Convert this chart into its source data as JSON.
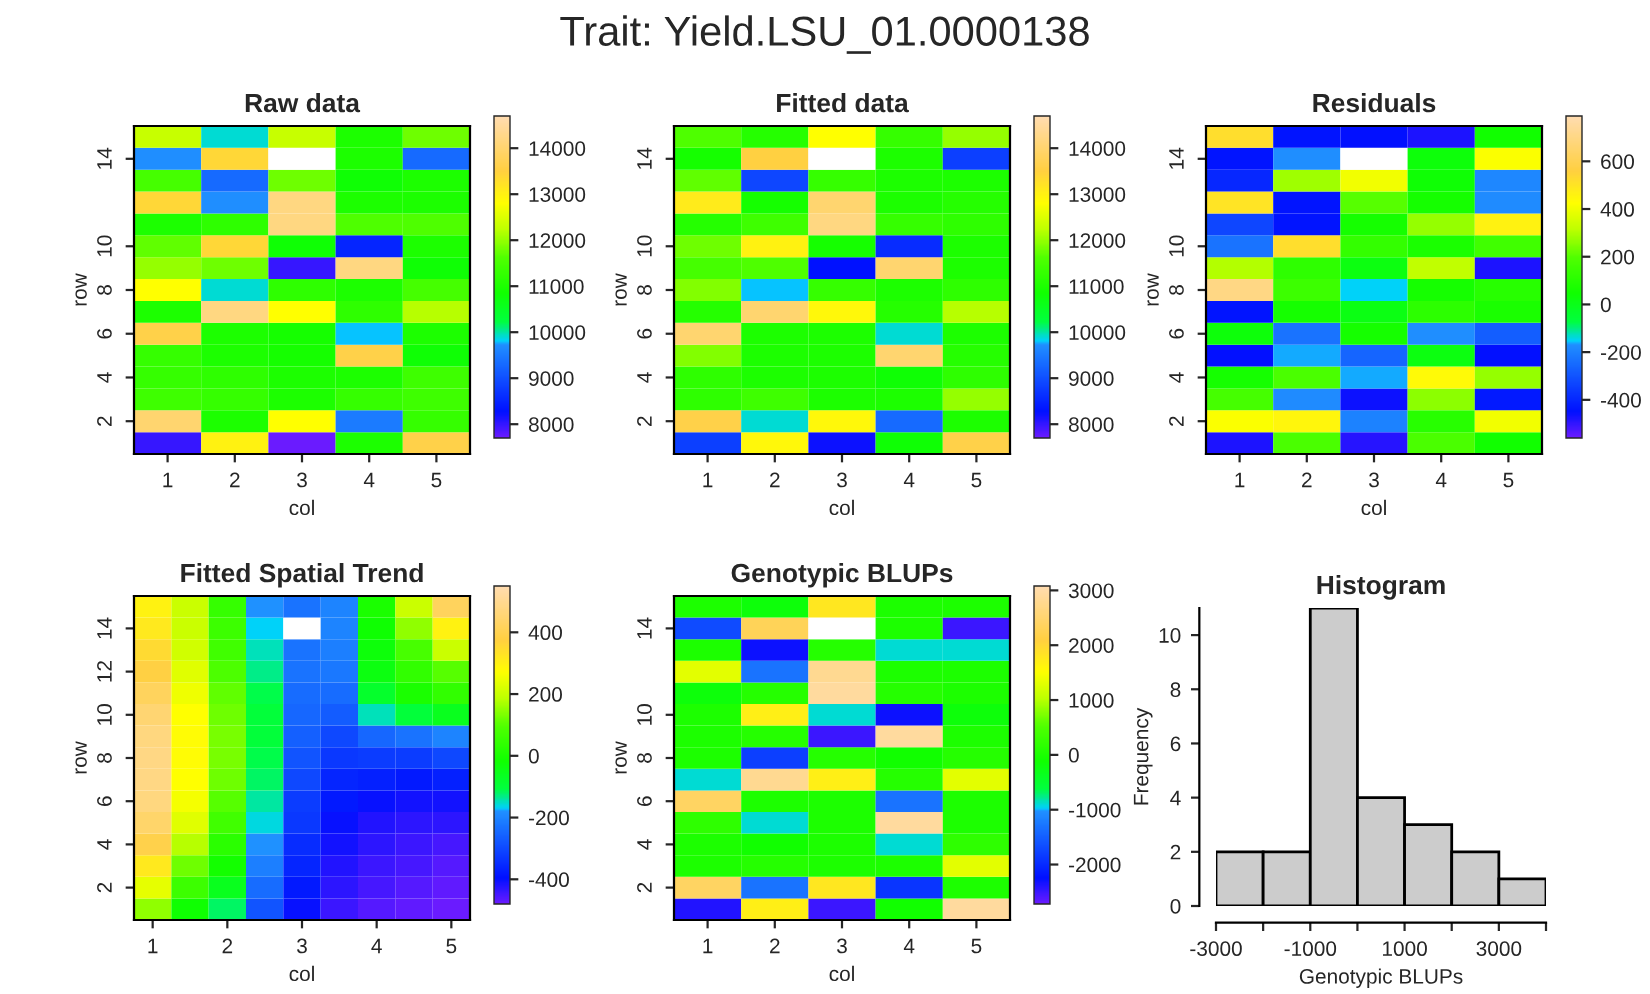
{
  "chart_data": [
    {
      "type": "heatmap",
      "title": "Raw data",
      "xlabel": "col",
      "ylabel": "row",
      "annotations": [
        "Trait: Yield.LSU_01.0000138"
      ],
      "categories": [
        "1",
        "2",
        "3",
        "4",
        "5"
      ],
      "y_categories": [
        null,
        "14",
        null,
        null,
        null,
        "10",
        null,
        "8",
        null,
        "6",
        null,
        "4",
        null,
        "2",
        null
      ],
      "cells": [
        [
          12300,
          9900,
          12300,
          11000,
          11800
        ],
        [
          9700,
          13400,
          null,
          11000,
          9300
        ],
        [
          11500,
          9300,
          11800,
          10800,
          11000
        ],
        [
          13400,
          9700,
          14200,
          11000,
          11000
        ],
        [
          11000,
          11200,
          14200,
          11600,
          11600
        ],
        [
          11700,
          13400,
          10800,
          8500,
          11000
        ],
        [
          12000,
          11800,
          8000,
          14200,
          10800
        ],
        [
          12800,
          9900,
          11200,
          11000,
          11500
        ],
        [
          11000,
          14200,
          12800,
          11200,
          12200
        ],
        [
          13600,
          11000,
          10900,
          9800,
          11000
        ],
        [
          11300,
          11000,
          10900,
          13600,
          10800
        ],
        [
          11300,
          11200,
          11000,
          11000,
          11400
        ],
        [
          11400,
          11300,
          11000,
          11300,
          11400
        ],
        [
          14000,
          11000,
          12800,
          9500,
          11300
        ],
        [
          8000,
          13000,
          7700,
          11000,
          13600
        ]
      ],
      "clim": [
        7700,
        14700
      ],
      "cticks": [
        8000,
        9000,
        10000,
        11000,
        12000,
        13000,
        14000
      ]
    },
    {
      "type": "heatmap",
      "title": "Fitted data",
      "xlabel": "col",
      "ylabel": "row",
      "categories": [
        "1",
        "2",
        "3",
        "4",
        "5"
      ],
      "y_categories": [
        null,
        "14",
        null,
        null,
        null,
        "10",
        null,
        "8",
        null,
        "6",
        null,
        "4",
        null,
        "2",
        null
      ],
      "cells": [
        [
          11600,
          11100,
          12800,
          11300,
          12000
        ],
        [
          10900,
          13500,
          null,
          11000,
          8800
        ],
        [
          11700,
          8900,
          11300,
          11000,
          11000
        ],
        [
          13100,
          10900,
          14000,
          11000,
          11100
        ],
        [
          11100,
          11400,
          14200,
          11300,
          11200
        ],
        [
          11800,
          13000,
          10900,
          8600,
          11000
        ],
        [
          11500,
          11600,
          8300,
          14000,
          11000
        ],
        [
          11900,
          9800,
          11300,
          11000,
          11200
        ],
        [
          11100,
          14000,
          12900,
          11100,
          12200
        ],
        [
          14000,
          11000,
          11000,
          9900,
          11000
        ],
        [
          11900,
          11000,
          11000,
          14000,
          11100
        ],
        [
          11200,
          11000,
          11000,
          10800,
          11200
        ],
        [
          11200,
          11400,
          11000,
          11000,
          12000
        ],
        [
          13600,
          9900,
          12900,
          9300,
          11000
        ],
        [
          8800,
          12900,
          8200,
          10800,
          13600
        ]
      ],
      "clim": [
        7700,
        14700
      ],
      "cticks": [
        8000,
        9000,
        10000,
        11000,
        12000,
        13000,
        14000
      ]
    },
    {
      "type": "heatmap",
      "title": "Residuals",
      "xlabel": "col",
      "ylabel": "row",
      "categories": [
        "1",
        "2",
        "3",
        "4",
        "5"
      ],
      "y_categories": [
        null,
        "14",
        null,
        null,
        null,
        "10",
        null,
        "8",
        null,
        "6",
        null,
        "4",
        null,
        "2",
        null
      ],
      "cells": [
        [
          520,
          -440,
          -450,
          -480,
          50
        ],
        [
          -440,
          -170,
          null,
          30,
          420
        ],
        [
          -400,
          280,
          400,
          40,
          -190
        ],
        [
          500,
          -440,
          200,
          60,
          -180
        ],
        [
          -330,
          -440,
          60,
          270,
          460
        ],
        [
          -230,
          520,
          130,
          70,
          160
        ],
        [
          300,
          120,
          20,
          320,
          -480
        ],
        [
          700,
          150,
          -150,
          60,
          100
        ],
        [
          -440,
          60,
          10,
          110,
          70
        ],
        [
          30,
          -230,
          60,
          -170,
          -280
        ],
        [
          -450,
          -160,
          -260,
          20,
          -450
        ],
        [
          60,
          180,
          -160,
          440,
          270
        ],
        [
          170,
          -180,
          -460,
          260,
          -430
        ],
        [
          420,
          450,
          -200,
          100,
          400
        ],
        [
          -480,
          180,
          -490,
          180,
          50
        ]
      ],
      "clim": [
        -560,
        790
      ],
      "cticks": [
        -400,
        -200,
        0,
        200,
        400,
        600
      ]
    },
    {
      "type": "heatmap",
      "title": "Fitted Spatial Trend",
      "xlabel": "col",
      "ylabel": "row",
      "categories": [
        "1",
        null,
        "2",
        null,
        "3",
        null,
        "4",
        null,
        "5"
      ],
      "y_categories": [
        null,
        "14",
        null,
        "12",
        null,
        "10",
        null,
        "8",
        null,
        "6",
        null,
        "4",
        null,
        "2",
        null
      ],
      "cells": [
        [
          300,
          200,
          50,
          -180,
          -230,
          -200,
          0,
          200,
          420
        ],
        [
          320,
          200,
          60,
          -170,
          null,
          -200,
          -20,
          150,
          300
        ],
        [
          350,
          210,
          70,
          -150,
          -230,
          -210,
          -30,
          80,
          200
        ],
        [
          380,
          230,
          90,
          -130,
          -230,
          -220,
          -40,
          40,
          100
        ],
        [
          420,
          250,
          110,
          -110,
          -240,
          -240,
          -80,
          0,
          40
        ],
        [
          450,
          270,
          120,
          -100,
          -250,
          -270,
          -150,
          -100,
          -60
        ],
        [
          470,
          280,
          130,
          -100,
          -260,
          -300,
          -250,
          -230,
          -200
        ],
        [
          480,
          280,
          130,
          -110,
          -280,
          -330,
          -320,
          -320,
          -300
        ],
        [
          480,
          270,
          120,
          -120,
          -300,
          -360,
          -370,
          -380,
          -370
        ],
        [
          470,
          260,
          100,
          -140,
          -320,
          -380,
          -400,
          -410,
          -410
        ],
        [
          440,
          230,
          70,
          -160,
          -330,
          -400,
          -420,
          -430,
          -430
        ],
        [
          390,
          180,
          30,
          -180,
          -350,
          -410,
          -430,
          -440,
          -450
        ],
        [
          320,
          120,
          -10,
          -210,
          -360,
          -420,
          -440,
          -450,
          -460
        ],
        [
          240,
          60,
          -60,
          -240,
          -380,
          -430,
          -450,
          -460,
          -470
        ],
        [
          150,
          -20,
          -120,
          -280,
          -400,
          -440,
          -460,
          -470,
          -480
        ]
      ],
      "clim": [
        -480,
        550
      ],
      "cticks": [
        -400,
        -200,
        0,
        200,
        400
      ]
    },
    {
      "type": "heatmap",
      "title": "Genotypic BLUPs",
      "xlabel": "col",
      "ylabel": "row",
      "categories": [
        "1",
        "2",
        "3",
        "4",
        "5"
      ],
      "y_categories": [
        null,
        "14",
        null,
        null,
        null,
        "10",
        null,
        "8",
        null,
        "6",
        null,
        "4",
        null,
        "2",
        null
      ],
      "cells": [
        [
          0,
          -200,
          1800,
          0,
          0
        ],
        [
          -1700,
          2300,
          null,
          0,
          -2500
        ],
        [
          0,
          -2300,
          100,
          -900,
          -900
        ],
        [
          1300,
          -1300,
          2800,
          0,
          0
        ],
        [
          -200,
          100,
          2900,
          100,
          0
        ],
        [
          0,
          1700,
          -900,
          -2300,
          -200
        ],
        [
          0,
          100,
          -2500,
          2900,
          0
        ],
        [
          0,
          -1800,
          100,
          -100,
          100
        ],
        [
          -900,
          2800,
          1700,
          100,
          1300
        ],
        [
          2400,
          0,
          0,
          -1300,
          0
        ],
        [
          200,
          -900,
          0,
          2900,
          0
        ],
        [
          0,
          -100,
          0,
          -900,
          200
        ],
        [
          0,
          100,
          0,
          0,
          1300
        ],
        [
          2400,
          -1300,
          1800,
          -1900,
          0
        ],
        [
          -2400,
          1700,
          -2500,
          -100,
          2900
        ]
      ],
      "clim": [
        -2720,
        3080
      ],
      "cticks": [
        -2000,
        -1000,
        0,
        1000,
        2000,
        3000
      ]
    },
    {
      "type": "histogram",
      "title": "Histogram",
      "xlabel": "Genotypic BLUPs",
      "ylabel": "Frequency",
      "color": "#cccccc",
      "bins": [
        -3000,
        -2000,
        -1000,
        0,
        1000,
        2000,
        3000,
        4000
      ],
      "values": [
        2,
        2,
        11,
        4,
        3,
        2,
        1
      ],
      "xlim": [
        -3000,
        4000
      ],
      "xticks": [
        -3000,
        {
          "value": -2000,
          "label": null
        },
        -1000,
        {
          "value": 0,
          "label": null
        },
        1000,
        {
          "value": 2000,
          "label": null
        },
        3000,
        {
          "value": 4000,
          "label": null
        }
      ],
      "ylim": [
        0,
        11
      ],
      "yticks": [
        0,
        2,
        4,
        6,
        8,
        10
      ]
    }
  ]
}
